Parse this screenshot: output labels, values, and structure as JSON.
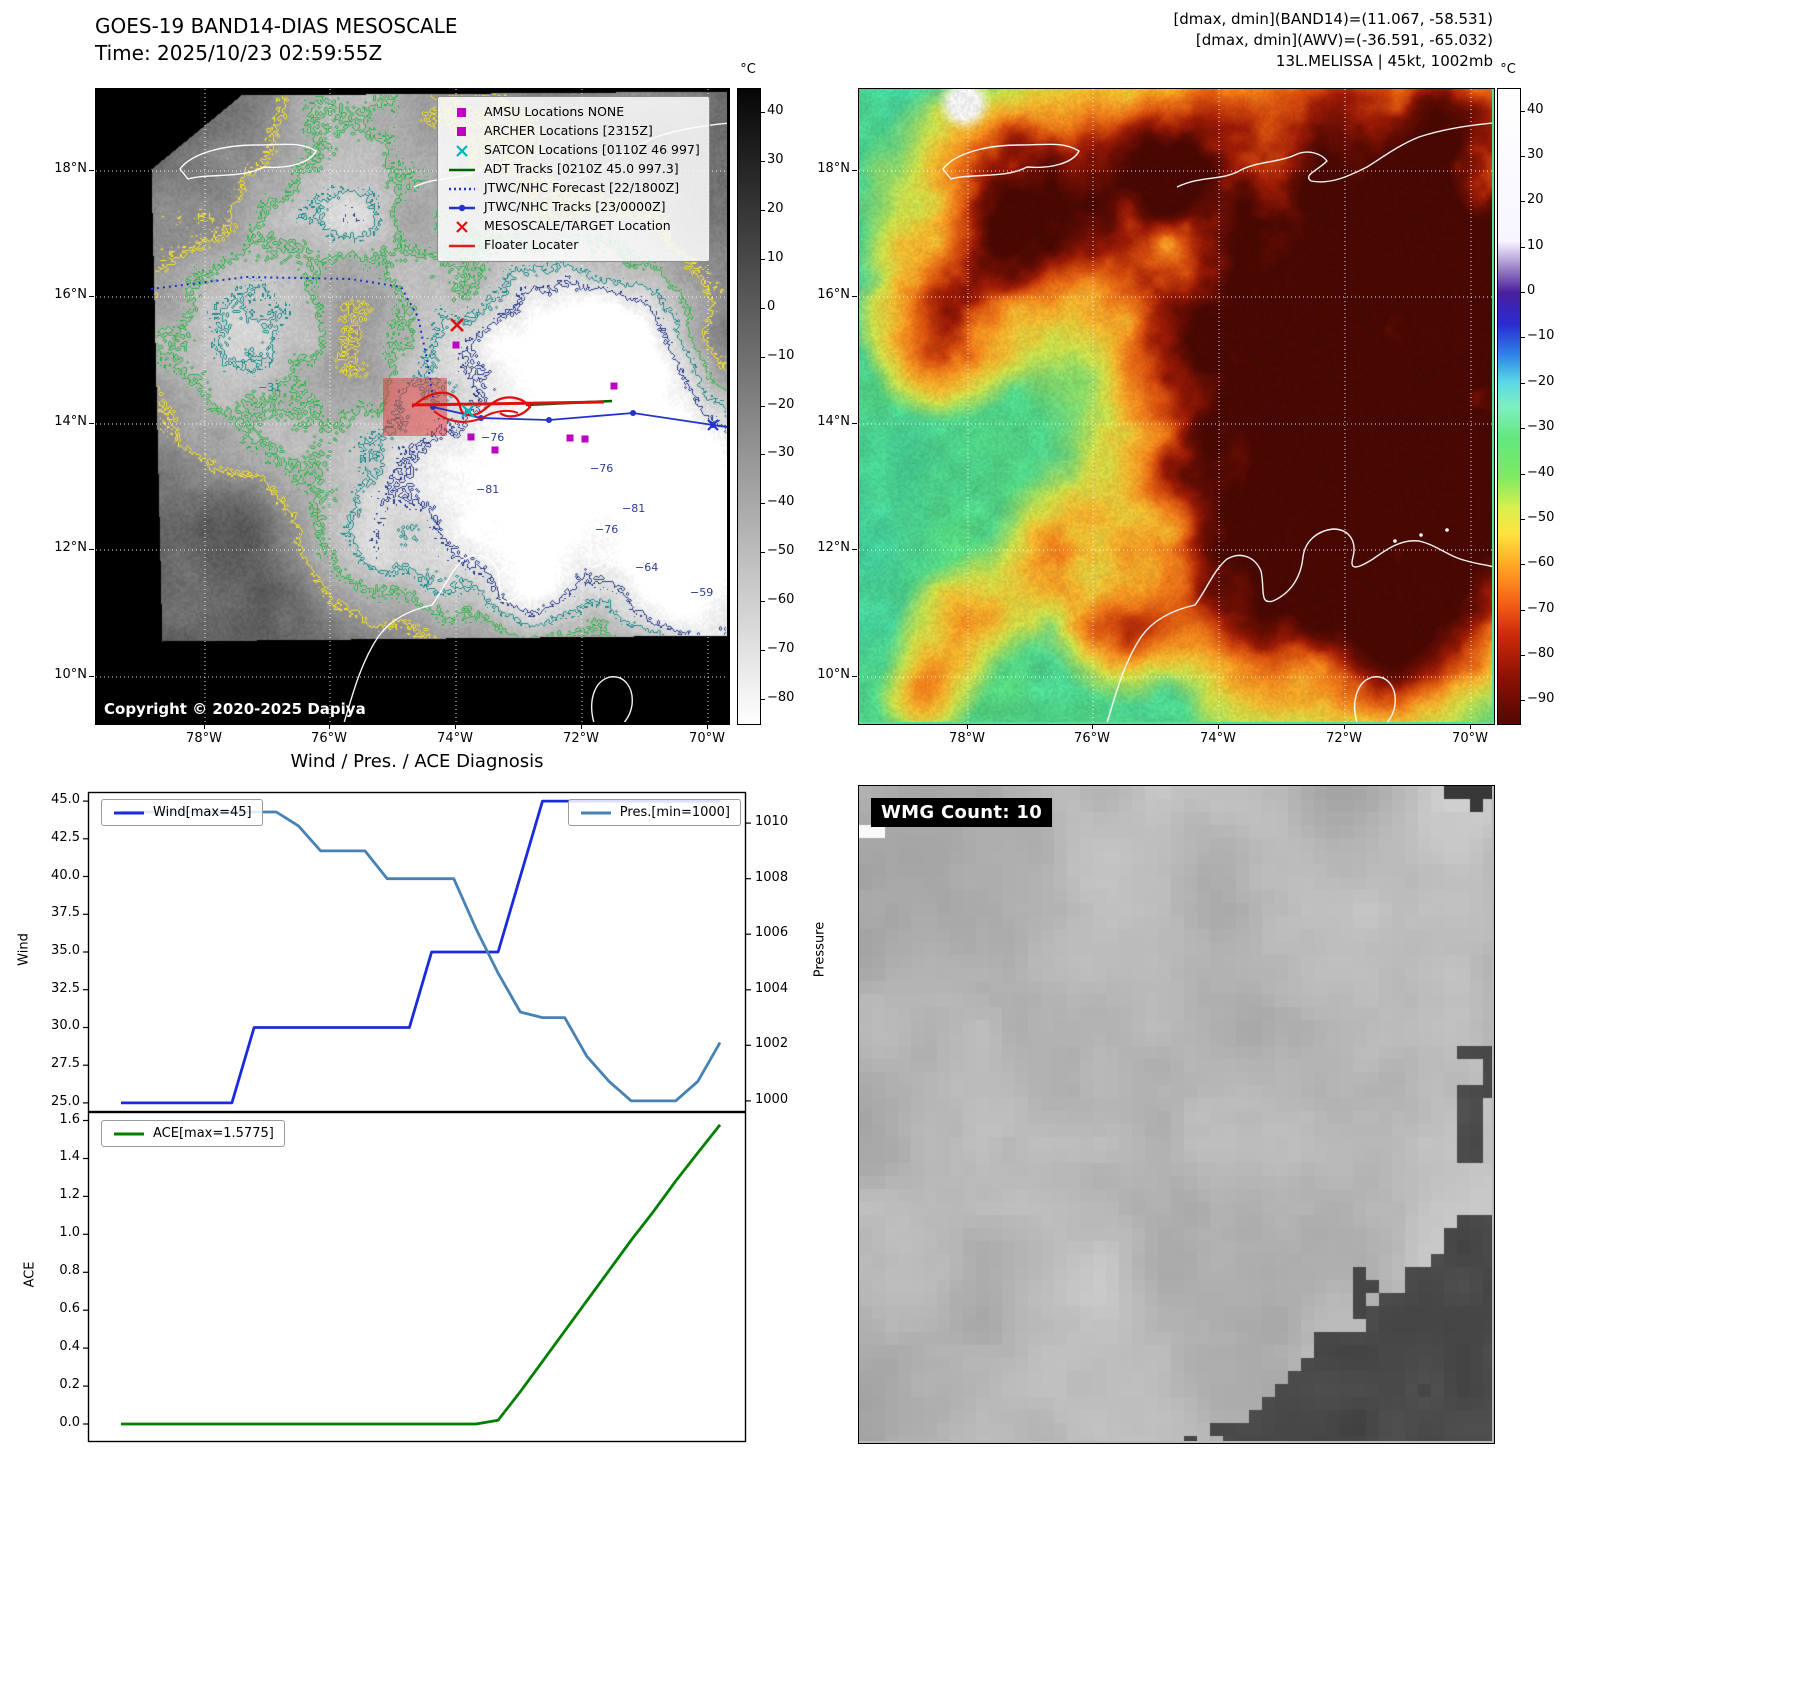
{
  "panel_band14": {
    "title_line1": "GOES-19 BAND14-DIAS MESOSCALE",
    "title_line2": "Time: 2025/10/23 02:59:55Z",
    "copyright": "Copyright © 2020-2025 Dapiya",
    "colorbar_unit": "°C",
    "colorbar_ticks": [
      "40",
      "30",
      "20",
      "10",
      "0",
      "−10",
      "−20",
      "−30",
      "−40",
      "−50",
      "−60",
      "−70",
      "−80"
    ],
    "x_ticks": [
      "78°W",
      "76°W",
      "74°W",
      "72°W",
      "70°W"
    ],
    "y_ticks": [
      "18°N",
      "16°N",
      "14°N",
      "12°N",
      "10°N"
    ],
    "legend_items": [
      {
        "label": "AMSU Locations NONE",
        "marker": "square",
        "color": "#c000c0"
      },
      {
        "label": "ARCHER Locations [2315Z]",
        "marker": "square",
        "color": "#c000c0"
      },
      {
        "label": "SATCON Locations [0110Z 46 997]",
        "marker": "x",
        "color": "#00b5b5"
      },
      {
        "label": "ADT Tracks [0210Z 45.0 997.3]",
        "marker": "line",
        "color": "#006400"
      },
      {
        "label": "JTWC/NHC Forecast [22/1800Z]",
        "marker": "dotted",
        "color": "#2233cc"
      },
      {
        "label": "JTWC/NHC Tracks [23/0000Z]",
        "marker": "line-dot",
        "color": "#2233cc"
      },
      {
        "label": "MESOSCALE/TARGET Location",
        "marker": "x",
        "color": "#e01010"
      },
      {
        "label": "Floater Locater",
        "marker": "line",
        "color": "#e02020"
      }
    ],
    "contour_labels": [
      "−31",
      "−76",
      "−81",
      "−76",
      "−81",
      "−64",
      "−59",
      "−76"
    ]
  },
  "panel_awv": {
    "header_line1": "[dmax, dmin](BAND14)=(11.067, -58.531)",
    "header_line2": "[dmax, dmin](AWV)=(-36.591, -65.032)",
    "header_line3": "13L.MELISSA | 45kt, 1002mb",
    "colorbar_unit": "°C",
    "colorbar_ticks": [
      "40",
      "30",
      "20",
      "10",
      "0",
      "−10",
      "−20",
      "−30",
      "−40",
      "−50",
      "−60",
      "−70",
      "−80",
      "−90"
    ],
    "x_ticks": [
      "78°W",
      "76°W",
      "74°W",
      "72°W",
      "70°W"
    ],
    "y_ticks": [
      "18°N",
      "16°N",
      "14°N",
      "12°N",
      "10°N"
    ]
  },
  "diagnosis": {
    "title": "Wind / Pres. / ACE Diagnosis"
  },
  "chart_data": [
    {
      "type": "line",
      "title": "Wind / Pres. / ACE Diagnosis",
      "x": [
        0,
        1,
        2,
        3,
        4,
        5,
        6,
        7,
        8,
        9,
        10,
        11,
        12,
        13,
        14,
        15,
        16,
        17,
        18,
        19,
        20,
        21,
        22,
        23,
        24,
        25,
        26,
        27
      ],
      "series": [
        {
          "name": "Wind[max=45]",
          "axis": "left",
          "color": "#1a2bdd",
          "values": [
            25,
            25,
            25,
            25,
            25,
            25,
            30,
            30,
            30,
            30,
            30,
            30,
            30,
            30,
            35,
            35,
            35,
            35,
            40,
            45,
            45,
            45,
            45,
            45,
            45,
            45,
            45,
            45
          ]
        },
        {
          "name": "Pres.[min=1000]",
          "axis": "right",
          "color": "#4682B4",
          "values": [
            1010.4,
            1010.4,
            1010.4,
            1010.4,
            1010.4,
            1010.4,
            1010.4,
            1010.4,
            1009.9,
            1009,
            1009,
            1009,
            1008,
            1008,
            1008,
            1008,
            1006.2,
            1004.6,
            1003.2,
            1003,
            1003,
            1001.6,
            1000.7,
            1000,
            1000,
            1000,
            1000.7,
            1002.1
          ]
        }
      ],
      "ylabel_left": "Wind",
      "ylabel_right": "Pressure",
      "yticks_left": [
        "45.0",
        "42.5",
        "40.0",
        "37.5",
        "35.0",
        "32.5",
        "30.0",
        "27.5",
        "25.0"
      ],
      "yticks_right": [
        "1010",
        "1008",
        "1006",
        "1004",
        "1002",
        "1000"
      ],
      "ylim_left": [
        24.4,
        45.6
      ],
      "ylim_right": [
        999.6,
        1011.12
      ],
      "grid": false,
      "legend_position": "top-left and top-right"
    },
    {
      "type": "line",
      "x": [
        0,
        1,
        2,
        3,
        4,
        5,
        6,
        7,
        8,
        9,
        10,
        11,
        12,
        13,
        14,
        15,
        16,
        17,
        18,
        19,
        20,
        21,
        22,
        23,
        24,
        25,
        26,
        27
      ],
      "series": [
        {
          "name": "ACE[max=1.5775]",
          "axis": "left",
          "color": "#008000",
          "values": [
            0,
            0,
            0,
            0,
            0,
            0,
            0,
            0,
            0,
            0,
            0,
            0,
            0,
            0,
            0,
            0,
            0,
            0.02,
            0.17,
            0.33,
            0.49,
            0.65,
            0.81,
            0.97,
            1.12,
            1.28,
            1.43,
            1.5775
          ]
        }
      ],
      "ylabel": "ACE",
      "yticks": [
        "1.6",
        "1.4",
        "1.2",
        "1.0",
        "0.8",
        "0.6",
        "0.4",
        "0.2",
        "0.0"
      ],
      "ylim": [
        -0.095,
        1.645
      ],
      "grid": false,
      "legend_position": "top-left"
    }
  ],
  "panel_wmg": {
    "label": "WMG Count: 10"
  }
}
